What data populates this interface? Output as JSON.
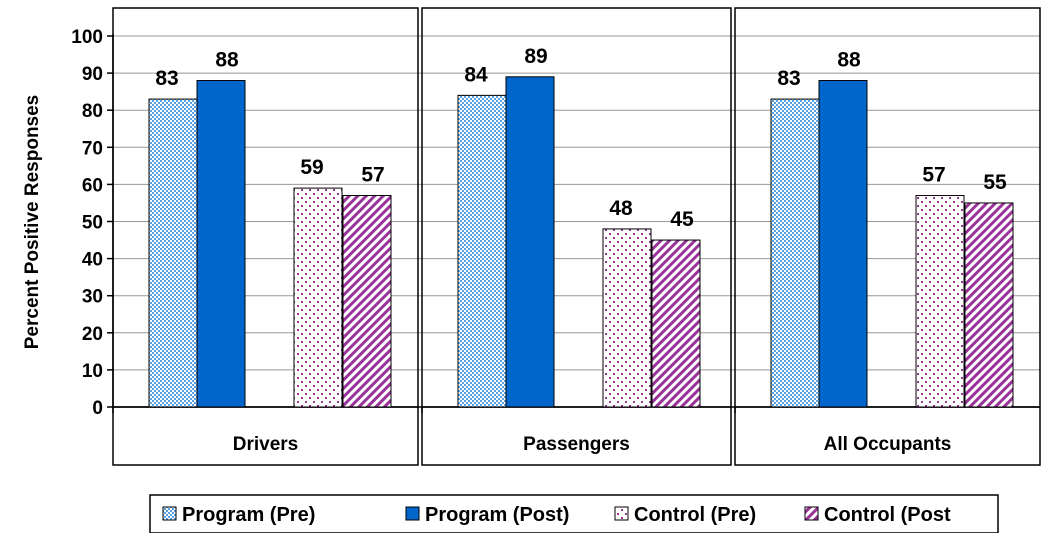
{
  "chart_data": {
    "type": "bar",
    "title": "",
    "xlabel": "",
    "ylabel": "Percent Positive Responses",
    "ylim": [
      0,
      100
    ],
    "yticks": [
      0,
      10,
      20,
      30,
      40,
      50,
      60,
      70,
      80,
      90,
      100
    ],
    "grid": true,
    "categories": [
      "Drivers",
      "Passengers",
      "All Occupants"
    ],
    "series": [
      {
        "name": "Program (Pre)",
        "values": [
          83,
          84,
          83
        ],
        "labels": [
          "83",
          "84",
          "83"
        ],
        "pattern": "dots-blue"
      },
      {
        "name": "Program (Post)",
        "values": [
          88,
          89,
          88
        ],
        "labels": [
          "88",
          "89",
          "88"
        ],
        "pattern": "solid-blue"
      },
      {
        "name": "Control (Pre)",
        "values": [
          59,
          48,
          57
        ],
        "labels": [
          "59",
          "48",
          "57"
        ],
        "pattern": "dots-purple"
      },
      {
        "name": "Control (Post",
        "values": [
          57,
          45,
          55
        ],
        "labels": [
          "57",
          "45",
          "55"
        ],
        "pattern": "hatch-purple"
      }
    ],
    "legend_position": "bottom",
    "colors": {
      "blue": "#0066cc",
      "light_blue": "#7fb5e8",
      "purple": "#993399",
      "grid": "#999999"
    }
  }
}
